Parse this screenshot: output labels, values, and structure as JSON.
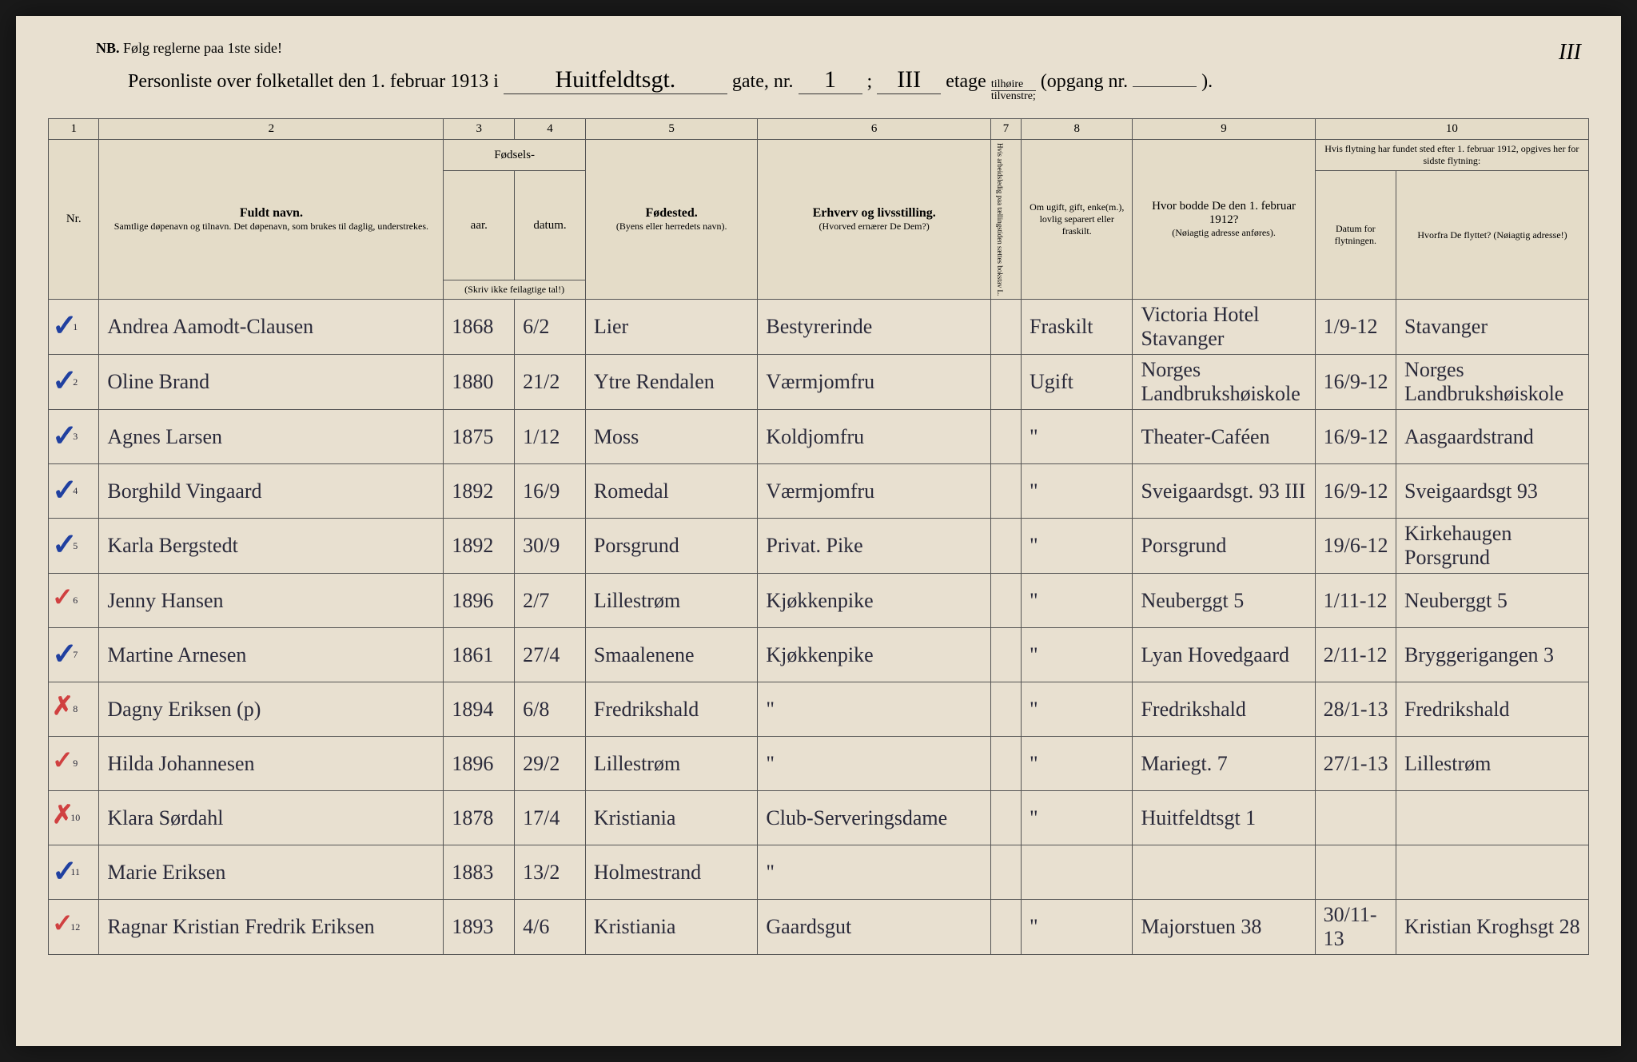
{
  "pageNumber": "III",
  "nb": {
    "label": "NB.",
    "text": "Følg reglerne paa 1ste side!"
  },
  "title": {
    "prefix": "Personliste over folketallet den 1. februar 1913 i",
    "street": "Huitfeldtsgt.",
    "gate_label": "gate, nr.",
    "gate_nr": "1",
    "semicolon": ";",
    "etage_val": "III",
    "etage_label": "etage",
    "side_top": "tilhøire",
    "side_bot": "tilvenstre;",
    "opgang_label": "(opgang nr.",
    "opgang_val": "",
    "close": ")."
  },
  "columns": {
    "c1": "1",
    "c2": "2",
    "c3": "3",
    "c4": "4",
    "c5": "5",
    "c6": "6",
    "c7": "7",
    "c8": "8",
    "c9": "9",
    "c10": "10",
    "nr": "Nr.",
    "name_main": "Fuldt navn.",
    "name_sub": "Samtlige døpenavn og tilnavn. Det døpenavn, som brukes til daglig, understrekes.",
    "fodsels": "Fødsels-",
    "aar": "aar.",
    "datum": "datum.",
    "aar_sub": "(Skriv ikke feilagtige tal!)",
    "fodested": "Fødested.",
    "fodested_sub": "(Byens eller herredets navn).",
    "erhverv": "Erhverv og livsstilling.",
    "erhverv_sub": "(Hvorved ernærer De Dem?)",
    "col7": "Hvis arbeidsledig paa tællingstiden sættes bokstav L.",
    "col8": "Om ugift, gift, enke(m.), lovlig separert eller fraskilt.",
    "col9": "Hvor bodde De den 1. februar 1912?",
    "col9_sub": "(Nøiagtig adresse anføres).",
    "col10": "Hvis flytning har fundet sted efter 1. februar 1912, opgives her for sidste flytning:",
    "col10a": "Datum for flytningen.",
    "col10b": "Hvorfra De flyttet? (Nøiagtig adresse!)"
  },
  "rows": [
    {
      "mark": "✓",
      "markClass": "",
      "nr": "1",
      "name": "Andrea Aamodt-Clausen",
      "year": "1868",
      "date": "6/2",
      "place": "Lier",
      "occ": "Bestyrerinde",
      "c7": "",
      "status": "Fraskilt",
      "addr1912": "Victoria Hotel Stavanger",
      "moveDate": "1/9-12",
      "from": "Stavanger"
    },
    {
      "mark": "✓",
      "markClass": "",
      "nr": "2",
      "name": "Oline Brand",
      "year": "1880",
      "date": "21/2",
      "place": "Ytre Rendalen",
      "occ": "Værmjomfru",
      "c7": "",
      "status": "Ugift",
      "addr1912": "Norges Landbrukshøiskole",
      "moveDate": "16/9-12",
      "from": "Norges Landbrukshøiskole"
    },
    {
      "mark": "✓",
      "markClass": "",
      "nr": "3",
      "name": "Agnes Larsen",
      "year": "1875",
      "date": "1/12",
      "place": "Moss",
      "occ": "Koldjomfru",
      "c7": "",
      "status": "\"",
      "addr1912": "Theater-Caféen",
      "moveDate": "16/9-12",
      "from": "Aasgaardstrand"
    },
    {
      "mark": "✓",
      "markClass": "",
      "nr": "4",
      "name": "Borghild Vingaard",
      "year": "1892",
      "date": "16/9",
      "place": "Romedal",
      "occ": "Værmjomfru",
      "c7": "",
      "status": "\"",
      "addr1912": "Sveigaardsgt. 93 III",
      "moveDate": "16/9-12",
      "from": "Sveigaardsgt 93"
    },
    {
      "mark": "✓",
      "markClass": "",
      "nr": "5",
      "name": "Karla Bergstedt",
      "year": "1892",
      "date": "30/9",
      "place": "Porsgrund",
      "occ": "Privat. Pike",
      "c7": "",
      "status": "\"",
      "addr1912": "Porsgrund",
      "moveDate": "19/6-12",
      "from": "Kirkehaugen Porsgrund"
    },
    {
      "mark": "✓",
      "markClass": "red x",
      "nr": "6",
      "name": "Jenny Hansen",
      "year": "1896",
      "date": "2/7",
      "place": "Lillestrøm",
      "occ": "Kjøkkenpike",
      "c7": "",
      "status": "\"",
      "addr1912": "Neuberggt 5",
      "moveDate": "1/11-12",
      "from": "Neuberggt 5"
    },
    {
      "mark": "✓",
      "markClass": "",
      "nr": "7",
      "name": "Martine Arnesen",
      "year": "1861",
      "date": "27/4",
      "place": "Smaalenene",
      "occ": "Kjøkkenpike",
      "c7": "",
      "status": "\"",
      "addr1912": "Lyan Hovedgaard",
      "moveDate": "2/11-12",
      "from": "Bryggerigangen 3"
    },
    {
      "mark": "✗",
      "markClass": "red x",
      "nr": "8",
      "name": "Dagny Eriksen (p)",
      "year": "1894",
      "date": "6/8",
      "place": "Fredrikshald",
      "occ": "\"",
      "c7": "",
      "status": "\"",
      "addr1912": "Fredrikshald",
      "moveDate": "28/1-13",
      "from": "Fredrikshald"
    },
    {
      "mark": "✓",
      "markClass": "red x",
      "nr": "9",
      "name": "Hilda Johannesen",
      "year": "1896",
      "date": "29/2",
      "place": "Lillestrøm",
      "occ": "\"",
      "c7": "",
      "status": "\"",
      "addr1912": "Mariegt. 7",
      "moveDate": "27/1-13",
      "from": "Lillestrøm"
    },
    {
      "mark": "✗",
      "markClass": "red x",
      "nr": "10",
      "name": "Klara Sørdahl",
      "year": "1878",
      "date": "17/4",
      "place": "Kristiania",
      "occ": "Club-Serveringsdame",
      "c7": "",
      "status": "\"",
      "addr1912": "Huitfeldtsgt 1",
      "moveDate": "",
      "from": ""
    },
    {
      "mark": "✓",
      "markClass": "",
      "nr": "11",
      "name": "Marie Eriksen",
      "year": "1883",
      "date": "13/2",
      "place": "Holmestrand",
      "occ": "\"",
      "c7": "",
      "status": "",
      "addr1912": "",
      "moveDate": "",
      "from": ""
    },
    {
      "mark": "✓",
      "markClass": "red x",
      "nr": "12",
      "name": "Ragnar Kristian Fredrik Eriksen",
      "year": "1893",
      "date": "4/6",
      "place": "Kristiania",
      "occ": "Gaardsgut",
      "c7": "",
      "status": "\"",
      "addr1912": "Majorstuen 38",
      "moveDate": "30/11-13",
      "from": "Kristian Kroghsgt 28"
    }
  ]
}
